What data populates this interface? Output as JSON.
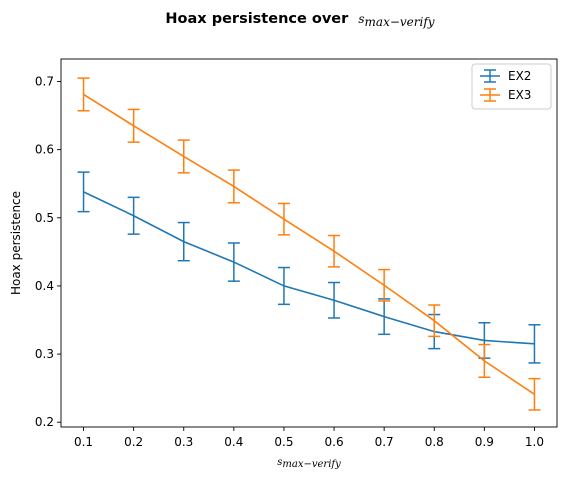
{
  "chart_data": {
    "type": "line",
    "title": "Hoax persistence over",
    "title_math": "s",
    "title_math_sub": "max−verify",
    "xlabel_math": "s",
    "xlabel_math_sub": "max−verify",
    "ylabel": "Hoax persistence",
    "x": [
      0.1,
      0.2,
      0.3,
      0.4,
      0.5,
      0.6,
      0.7,
      0.8,
      0.9,
      1.0
    ],
    "x_tick_labels": [
      "0.1",
      "0.2",
      "0.3",
      "0.4",
      "0.5",
      "0.6",
      "0.7",
      "0.8",
      "0.9",
      "1.0"
    ],
    "y_ticks": [
      0.2,
      0.3,
      0.4,
      0.5,
      0.6,
      0.7
    ],
    "y_tick_labels": [
      "0.2",
      "0.3",
      "0.4",
      "0.5",
      "0.6",
      "0.7"
    ],
    "xlim": [
      0.055,
      1.045
    ],
    "ylim": [
      0.193,
      0.733
    ],
    "legend_position": "top-right",
    "series": [
      {
        "name": "EX2",
        "color": "#1f77b4",
        "values": [
          0.538,
          0.503,
          0.465,
          0.435,
          0.4,
          0.379,
          0.355,
          0.333,
          0.32,
          0.315
        ],
        "errors": [
          0.029,
          0.027,
          0.028,
          0.028,
          0.027,
          0.026,
          0.026,
          0.025,
          0.026,
          0.028
        ]
      },
      {
        "name": "EX3",
        "color": "#ff7f0e",
        "values": [
          0.681,
          0.635,
          0.59,
          0.546,
          0.498,
          0.451,
          0.401,
          0.349,
          0.29,
          0.241
        ],
        "errors": [
          0.024,
          0.024,
          0.024,
          0.024,
          0.023,
          0.023,
          0.023,
          0.023,
          0.024,
          0.023
        ]
      }
    ]
  }
}
